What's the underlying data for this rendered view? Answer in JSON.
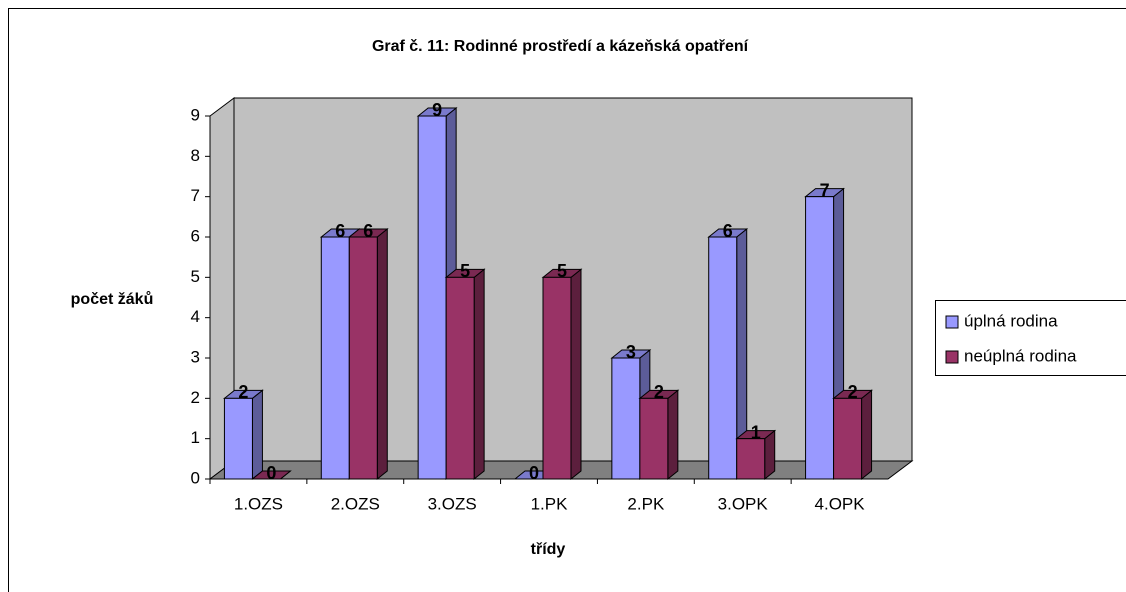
{
  "chart_data": {
    "type": "bar3d",
    "title": "Graf č. 11: Rodinné prostředí a kázeňská opatření",
    "x_label": "třídy",
    "y_label": "počet žáků",
    "categories": [
      "1.OZS",
      "2.OZS",
      "3.OZS",
      "1.PK",
      "2.PK",
      "3.OPK",
      "4.OPK"
    ],
    "series": [
      {
        "name": "úplná rodina",
        "color": "#9999ff",
        "values": [
          2,
          6,
          9,
          0,
          3,
          6,
          7
        ]
      },
      {
        "name": "neúplná rodina",
        "color": "#993366",
        "values": [
          0,
          6,
          5,
          5,
          2,
          1,
          2
        ]
      }
    ],
    "ylim": [
      0,
      9
    ],
    "yticks": [
      0,
      1,
      2,
      3,
      4,
      5,
      6,
      7,
      8,
      9
    ],
    "grid": false,
    "legend": "right"
  }
}
